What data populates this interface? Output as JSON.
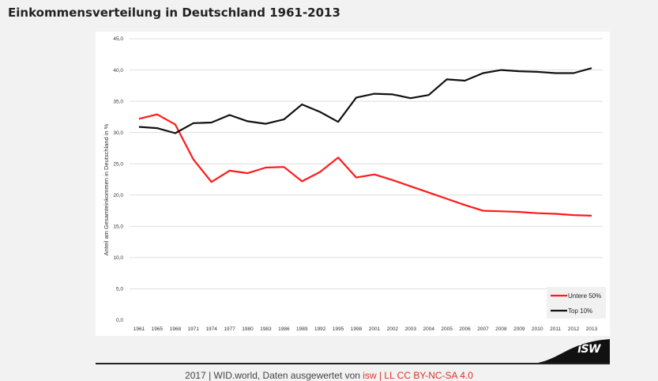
{
  "title": "Einkommensverteilung in Deutschland 1961-2013",
  "chart_data": {
    "type": "line",
    "title": "",
    "xlabel": "",
    "ylabel": "Anteil am Gesamteinkommen in Deutschland in %",
    "ylim": [
      0,
      45
    ],
    "yticks": [
      "0,0",
      "5,0",
      "10,0",
      "15,0",
      "20,0",
      "25,0",
      "30,0",
      "35,0",
      "40,0",
      "45,0"
    ],
    "grid": true,
    "legend_position": "bottom-right",
    "categories": [
      "1961",
      "1965",
      "1968",
      "1971",
      "1974",
      "1977",
      "1980",
      "1983",
      "1986",
      "1989",
      "1992",
      "1995",
      "1998",
      "2001",
      "2002",
      "2003",
      "2004",
      "2005",
      "2006",
      "2007",
      "2008",
      "2009",
      "2010",
      "2011",
      "2012",
      "2013"
    ],
    "series": [
      {
        "name": "Untere 50%",
        "color": "#ff1a1a",
        "values": [
          32.2,
          32.9,
          31.3,
          25.7,
          22.1,
          23.9,
          23.5,
          24.4,
          24.5,
          22.2,
          23.7,
          26.0,
          22.8,
          23.3,
          22.4,
          21.4,
          20.4,
          19.4,
          18.4,
          17.5,
          17.4,
          17.3,
          17.1,
          17.0,
          16.8,
          16.7
        ]
      },
      {
        "name": "Top 10%",
        "color": "#111111",
        "values": [
          30.9,
          30.7,
          29.9,
          31.5,
          31.6,
          32.8,
          31.8,
          31.4,
          32.1,
          34.5,
          33.3,
          31.7,
          35.6,
          36.2,
          36.1,
          35.5,
          36.0,
          38.5,
          38.3,
          39.5,
          40.0,
          39.8,
          39.7,
          39.5,
          39.5,
          40.3
        ]
      }
    ]
  },
  "logo_text": "iSW",
  "source": {
    "prefix": "2017 | WID.world, Daten ausgewertet von ",
    "license": "isw | LL CC BY-NC-SA 4.0"
  }
}
